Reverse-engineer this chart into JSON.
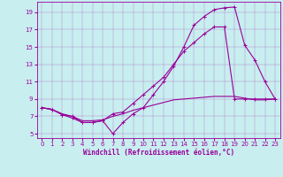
{
  "xlabel": "Windchill (Refroidissement éolien,°C)",
  "background_color": "#c8eef0",
  "line_color": "#990099",
  "xlim": [
    -0.5,
    23.5
  ],
  "ylim": [
    4.5,
    20.2
  ],
  "xticks": [
    0,
    1,
    2,
    3,
    4,
    5,
    6,
    7,
    8,
    9,
    10,
    11,
    12,
    13,
    14,
    15,
    16,
    17,
    18,
    19,
    20,
    21,
    22,
    23
  ],
  "yticks": [
    5,
    7,
    9,
    11,
    13,
    15,
    17,
    19
  ],
  "line1_x": [
    0,
    1,
    2,
    3,
    4,
    5,
    6,
    7,
    8,
    9,
    10,
    11,
    12,
    13,
    14,
    15,
    16,
    17,
    18,
    19,
    20,
    21,
    22,
    23
  ],
  "line1_y": [
    8.0,
    7.8,
    7.2,
    6.8,
    6.3,
    6.3,
    6.5,
    5.0,
    6.3,
    7.3,
    8.0,
    9.5,
    11.0,
    12.8,
    15.0,
    17.5,
    18.5,
    19.3,
    19.5,
    19.6,
    15.2,
    13.5,
    11.0,
    9.0
  ],
  "line2_x": [
    0,
    1,
    2,
    3,
    4,
    5,
    6,
    7,
    8,
    9,
    10,
    11,
    12,
    13,
    14,
    15,
    16,
    17,
    18,
    19,
    20,
    21,
    22,
    23
  ],
  "line2_y": [
    8.0,
    7.8,
    7.2,
    7.0,
    6.3,
    6.3,
    6.5,
    7.3,
    7.5,
    8.5,
    9.5,
    10.5,
    11.5,
    13.0,
    14.5,
    15.5,
    16.5,
    17.3,
    17.3,
    9.0,
    9.0,
    9.0,
    9.0,
    9.0
  ],
  "line3_x": [
    0,
    1,
    2,
    3,
    4,
    5,
    6,
    7,
    8,
    9,
    10,
    11,
    12,
    13,
    14,
    15,
    16,
    17,
    18,
    19,
    20,
    21,
    22,
    23
  ],
  "line3_y": [
    8.0,
    7.8,
    7.3,
    7.0,
    6.5,
    6.5,
    6.6,
    7.0,
    7.3,
    7.7,
    8.0,
    8.3,
    8.6,
    8.9,
    9.0,
    9.1,
    9.2,
    9.3,
    9.3,
    9.3,
    9.1,
    8.9,
    8.9,
    9.0
  ],
  "tick_fontsize": 5.0,
  "xlabel_fontsize": 5.5
}
